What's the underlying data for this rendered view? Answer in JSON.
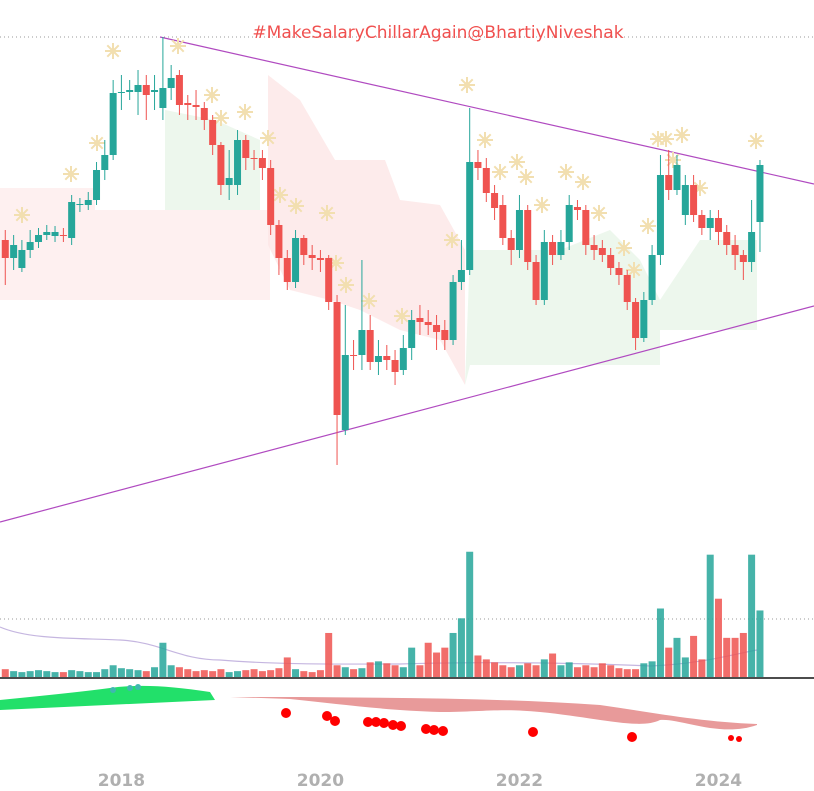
{
  "chart_data": {
    "type": "candlestick",
    "title": "#MakeSalaryChillarAgain@BhartiyNiveshak",
    "x": [
      2016.833,
      2016.917,
      2017,
      2017.083,
      2017.167,
      2017.25,
      2017.333,
      2017.417,
      2017.5,
      2017.583,
      2017.667,
      2017.75,
      2017.833,
      2017.917,
      2018,
      2018.083,
      2018.167,
      2018.25,
      2018.333,
      2018.417,
      2018.5,
      2018.583,
      2018.667,
      2018.75,
      2018.833,
      2018.917,
      2019,
      2019.083,
      2019.167,
      2019.25,
      2019.333,
      2019.417,
      2019.5,
      2019.583,
      2019.667,
      2019.75,
      2019.833,
      2019.917,
      2020,
      2020.083,
      2020.167,
      2020.25,
      2020.333,
      2020.417,
      2020.5,
      2020.583,
      2020.667,
      2020.75,
      2020.833,
      2020.917,
      2021,
      2021.083,
      2021.167,
      2021.25,
      2021.333,
      2021.417,
      2021.5,
      2021.583,
      2021.667,
      2021.75,
      2021.833,
      2021.917,
      2022,
      2022.083,
      2022.167,
      2022.25,
      2022.333,
      2022.417,
      2022.5,
      2022.583,
      2022.667,
      2022.75,
      2022.833,
      2022.917,
      2023,
      2023.083,
      2023.167,
      2023.25,
      2023.333,
      2023.417,
      2023.5,
      2023.583,
      2023.667,
      2023.75,
      2023.833,
      2023.917,
      2024,
      2024.083,
      2024.167,
      2024.25,
      2024.333,
      2024.417
    ],
    "open": [
      280,
      262,
      252,
      270,
      278,
      285,
      284,
      285,
      282,
      315,
      315,
      320,
      350,
      365,
      427,
      428,
      428,
      435,
      428,
      412,
      432,
      445,
      417,
      415,
      412,
      400,
      375,
      335,
      335,
      380,
      362,
      362,
      352,
      295,
      262,
      238,
      282,
      265,
      262,
      262,
      218,
      90,
      165,
      165,
      190,
      158,
      164,
      160,
      150,
      172,
      202,
      198,
      195,
      190,
      180,
      238,
      250,
      358,
      352,
      327,
      315,
      282,
      270,
      310,
      258,
      220,
      278,
      265,
      278,
      313,
      310,
      275,
      272,
      265,
      252,
      245,
      218,
      182,
      220,
      265,
      345,
      330,
      305,
      335,
      305,
      292,
      302,
      288,
      275,
      265,
      258,
      298
    ],
    "high": [
      290,
      285,
      280,
      290,
      292,
      295,
      294,
      292,
      325,
      322,
      328,
      358,
      380,
      440,
      445,
      440,
      450,
      445,
      445,
      483,
      455,
      450,
      425,
      430,
      418,
      405,
      378,
      370,
      390,
      385,
      370,
      370,
      360,
      300,
      270,
      290,
      285,
      275,
      270,
      265,
      225,
      215,
      180,
      260,
      205,
      180,
      175,
      170,
      185,
      210,
      215,
      210,
      205,
      200,
      245,
      280,
      412,
      370,
      362,
      335,
      325,
      290,
      325,
      315,
      265,
      290,
      285,
      290,
      325,
      320,
      315,
      285,
      280,
      272,
      258,
      250,
      222,
      228,
      275,
      365,
      370,
      365,
      345,
      345,
      310,
      310,
      310,
      295,
      285,
      270,
      320,
      360
    ],
    "low": [
      235,
      250,
      248,
      262,
      272,
      280,
      278,
      278,
      275,
      308,
      310,
      315,
      340,
      360,
      410,
      420,
      405,
      400,
      410,
      400,
      420,
      405,
      400,
      400,
      390,
      365,
      325,
      320,
      325,
      350,
      350,
      340,
      285,
      245,
      230,
      232,
      255,
      250,
      248,
      210,
      55,
      85,
      150,
      150,
      150,
      145,
      150,
      135,
      145,
      160,
      185,
      185,
      170,
      170,
      175,
      230,
      245,
      340,
      318,
      300,
      275,
      255,
      262,
      250,
      215,
      215,
      255,
      260,
      270,
      300,
      265,
      260,
      258,
      245,
      235,
      210,
      170,
      178,
      215,
      255,
      320,
      325,
      295,
      298,
      285,
      280,
      275,
      265,
      250,
      240,
      248,
      268
    ],
    "close": [
      262,
      275,
      270,
      278,
      285,
      288,
      288,
      284,
      318,
      316,
      320,
      350,
      365,
      427,
      428,
      430,
      435,
      425,
      430,
      432,
      442,
      415,
      415,
      413,
      400,
      375,
      335,
      342,
      380,
      362,
      361,
      352,
      295,
      262,
      238,
      282,
      265,
      262,
      260,
      218,
      105,
      165,
      164,
      190,
      158,
      164,
      160,
      148,
      172,
      200,
      198,
      195,
      188,
      180,
      238,
      250,
      358,
      352,
      327,
      312,
      282,
      270,
      310,
      258,
      220,
      278,
      265,
      278,
      315,
      310,
      275,
      270,
      265,
      252,
      245,
      218,
      182,
      220,
      265,
      345,
      330,
      355,
      335,
      305,
      292,
      302,
      288,
      275,
      265,
      258,
      288,
      355
    ],
    "volume": [
      8,
      6,
      5,
      6,
      7,
      6,
      5,
      5,
      7,
      6,
      5,
      5,
      8,
      12,
      9,
      8,
      7,
      6,
      10,
      35,
      12,
      10,
      8,
      6,
      7,
      6,
      8,
      5,
      6,
      7,
      8,
      6,
      7,
      9,
      20,
      8,
      6,
      5,
      7,
      45,
      12,
      10,
      8,
      9,
      15,
      16,
      14,
      12,
      10,
      30,
      12,
      35,
      25,
      30,
      45,
      60,
      128,
      22,
      18,
      15,
      12,
      10,
      12,
      14,
      12,
      18,
      24,
      12,
      15,
      10,
      12,
      10,
      14,
      12,
      9,
      8,
      8,
      14,
      16,
      70,
      30,
      40,
      20,
      42,
      18,
      125,
      80,
      40,
      40,
      45,
      125,
      68
    ],
    "up_color": "#26a69a",
    "down_color": "#ef5350",
    "ylim": [
      0,
      520
    ],
    "volume_lim": [
      0,
      140
    ],
    "xlim": [
      2016.78,
      2024.96
    ],
    "xticks": [
      2018,
      2020,
      2022,
      2024
    ]
  }
}
